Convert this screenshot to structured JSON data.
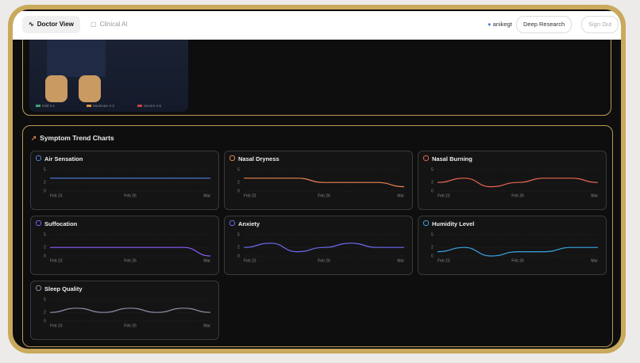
{
  "nav": {
    "tabs": [
      "Doctor View",
      "Clinical AI"
    ],
    "user": "anikegt",
    "buttons": [
      "Deep Research",
      "Sign Out"
    ]
  },
  "image_legend": [
    "Mild 0-1",
    "Moderate 2-3",
    "Severe 4-5"
  ],
  "section_title": "Symptom Trend Charts",
  "charts": [
    {
      "type": "line",
      "title": "Air Sensation",
      "color": "#4f7fe6",
      "xticks": [
        "Feb 23",
        "Feb 26",
        "Mar"
      ],
      "ylim": [
        0,
        5
      ],
      "yticks": [
        0,
        2,
        5
      ],
      "values": [
        3,
        3,
        3,
        3,
        3,
        3,
        3
      ]
    },
    {
      "type": "line",
      "title": "Nasal Dryness",
      "color": "#e8834f",
      "xticks": [
        "Feb 23",
        "Feb 26",
        "Mar"
      ],
      "ylim": [
        0,
        5
      ],
      "yticks": [
        0,
        2,
        5
      ],
      "values": [
        3,
        3,
        3,
        2,
        2,
        2,
        1
      ]
    },
    {
      "type": "line",
      "title": "Nasal Burning",
      "color": "#e8654f",
      "xticks": [
        "Feb 23",
        "Feb 26",
        "Mar"
      ],
      "ylim": [
        0,
        5
      ],
      "yticks": [
        0,
        2,
        5
      ],
      "values": [
        2,
        3,
        1,
        2,
        3,
        3,
        2
      ]
    },
    {
      "type": "line",
      "title": "Suffocation",
      "color": "#8b5cf6",
      "xticks": [
        "Feb 23",
        "Feb 26",
        "Mar"
      ],
      "ylim": [
        0,
        5
      ],
      "yticks": [
        0,
        2,
        5
      ],
      "values": [
        2,
        2,
        2,
        2,
        2,
        2,
        0
      ]
    },
    {
      "type": "line",
      "title": "Anxiety",
      "color": "#6a6cf0",
      "xticks": [
        "Feb 23",
        "Feb 26",
        "Mar"
      ],
      "ylim": [
        0,
        5
      ],
      "yticks": [
        0,
        2,
        5
      ],
      "values": [
        2,
        3,
        1,
        2,
        3,
        2,
        2
      ]
    },
    {
      "type": "line",
      "title": "Humidity Level",
      "color": "#3aa6e0",
      "xticks": [
        "Feb 23",
        "Feb 26",
        "Mar"
      ],
      "ylim": [
        0,
        5
      ],
      "yticks": [
        0,
        2,
        5
      ],
      "values": [
        1,
        2,
        0,
        1,
        1,
        2,
        2
      ]
    },
    {
      "type": "line",
      "title": "Sleep Quality",
      "color": "#8d8ca6",
      "xticks": [
        "Feb 23",
        "Feb 26",
        "Mar"
      ],
      "ylim": [
        0,
        5
      ],
      "yticks": [
        0,
        2,
        5
      ],
      "values": [
        2,
        3,
        2,
        3,
        2,
        3,
        2
      ]
    }
  ]
}
